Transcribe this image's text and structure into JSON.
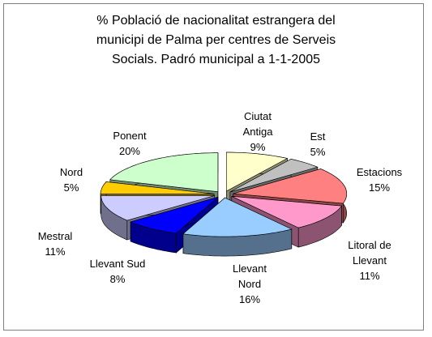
{
  "chart_data": {
    "type": "pie3d",
    "title": [
      "% Població de nacionalitat estrangera del",
      "municipi de Palma  per centres de Serveis",
      "Socials. Padró municipal a 1-1-2005"
    ],
    "categories": [
      "Ciutat Antiga",
      "Est",
      "Estacions",
      "Litoral de Llevant",
      "Llevant Nord",
      "Llevant Sud",
      "Mestral",
      "Nord",
      "Ponent"
    ],
    "values": [
      9,
      5,
      15,
      11,
      16,
      8,
      11,
      5,
      20
    ],
    "value_labels": [
      "9%",
      "5%",
      "15%",
      "11%",
      "16%",
      "8%",
      "11%",
      "5%",
      "20%"
    ],
    "colors": [
      "#ffffcc",
      "#c0c0c0",
      "#ff8080",
      "#ff99cc",
      "#99ccff",
      "#0000ff",
      "#ccccff",
      "#ffcc00",
      "#ccffcc"
    ]
  }
}
